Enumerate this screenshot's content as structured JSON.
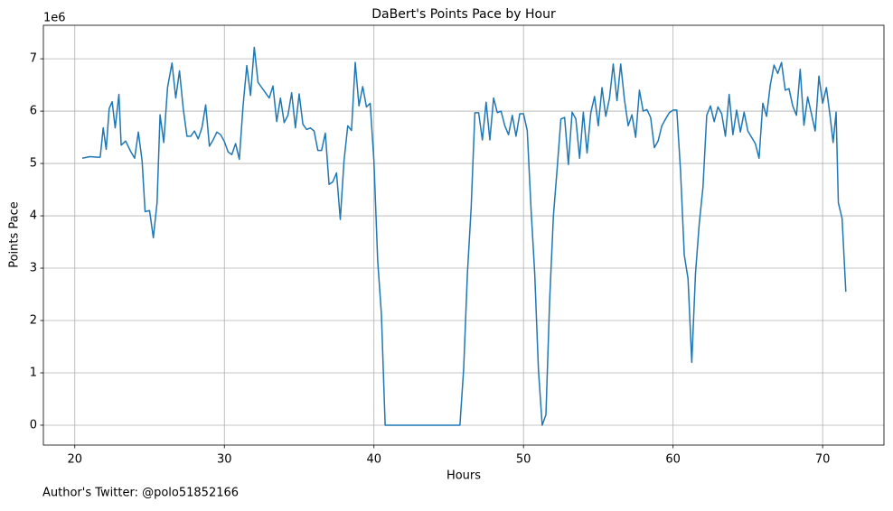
{
  "chart_data": {
    "type": "line",
    "title": "DaBert's Points Pace by Hour",
    "x_label": "Hours",
    "y_label": "Points Pace",
    "y_offset_label": "1e6",
    "footnote": "Author's Twitter: @polo51852166",
    "grid": true,
    "xlim": [
      17.9,
      74.1
    ],
    "ylim": [
      -0.38,
      7.64
    ],
    "xticks": [
      20,
      30,
      40,
      50,
      60,
      70
    ],
    "yticks": [
      0,
      1,
      2,
      3,
      4,
      5,
      6,
      7
    ],
    "x": [
      20.5,
      21.0,
      21.5,
      21.7,
      21.9,
      22.1,
      22.3,
      22.5,
      22.7,
      22.95,
      23.1,
      23.4,
      23.7,
      24.0,
      24.25,
      24.5,
      24.7,
      25.0,
      25.25,
      25.5,
      25.7,
      25.95,
      26.2,
      26.5,
      26.75,
      27.0,
      27.25,
      27.5,
      27.75,
      28.0,
      28.25,
      28.5,
      28.75,
      29.0,
      29.25,
      29.5,
      29.75,
      30.0,
      30.25,
      30.5,
      30.75,
      31.0,
      31.25,
      31.5,
      31.75,
      32.0,
      32.25,
      32.5,
      32.75,
      33.0,
      33.25,
      33.5,
      33.75,
      34.0,
      34.25,
      34.5,
      34.75,
      35.0,
      35.25,
      35.5,
      35.75,
      36.0,
      36.25,
      36.5,
      36.75,
      37.0,
      37.25,
      37.5,
      37.75,
      38.0,
      38.25,
      38.5,
      38.75,
      39.0,
      39.25,
      39.5,
      39.75,
      40.0,
      40.25,
      40.5,
      40.75,
      42.0,
      43.0,
      44.0,
      45.0,
      45.75,
      46.0,
      46.25,
      46.5,
      46.75,
      47.0,
      47.25,
      47.5,
      47.75,
      48.0,
      48.25,
      48.5,
      48.75,
      49.0,
      49.25,
      49.5,
      49.75,
      50.0,
      50.25,
      50.5,
      50.75,
      51.0,
      51.25,
      51.5,
      51.75,
      52.0,
      52.25,
      52.5,
      52.75,
      53.0,
      53.25,
      53.5,
      53.75,
      54.0,
      54.25,
      54.5,
      54.75,
      55.0,
      55.25,
      55.5,
      55.75,
      56.0,
      56.25,
      56.5,
      56.75,
      57.0,
      57.25,
      57.5,
      57.75,
      58.0,
      58.25,
      58.5,
      58.75,
      59.0,
      59.25,
      59.5,
      59.75,
      60.0,
      60.25,
      60.5,
      60.75,
      61.0,
      61.25,
      61.5,
      61.75,
      62.0,
      62.25,
      62.5,
      62.75,
      63.0,
      63.25,
      63.5,
      63.75,
      64.0,
      64.25,
      64.5,
      64.75,
      65.0,
      65.25,
      65.5,
      65.75,
      66.0,
      66.25,
      66.5,
      66.75,
      67.0,
      67.25,
      67.5,
      67.75,
      68.0,
      68.25,
      68.5,
      68.75,
      69.0,
      69.25,
      69.5,
      69.75,
      70.0,
      70.25,
      70.5,
      70.7,
      70.9,
      71.05,
      71.3,
      71.55
    ],
    "series": [
      {
        "name": "Points Pace",
        "color": "#1f77b4",
        "values": [
          5.1,
          5.13,
          5.12,
          5.12,
          5.68,
          5.27,
          6.05,
          6.18,
          5.68,
          6.32,
          5.35,
          5.43,
          5.25,
          5.1,
          5.6,
          5.05,
          4.08,
          4.1,
          3.58,
          4.25,
          5.93,
          5.4,
          6.45,
          6.92,
          6.25,
          6.77,
          6.05,
          5.52,
          5.52,
          5.62,
          5.47,
          5.68,
          6.12,
          5.33,
          5.45,
          5.6,
          5.55,
          5.42,
          5.22,
          5.17,
          5.38,
          5.08,
          6.1,
          6.87,
          6.3,
          7.22,
          6.55,
          6.45,
          6.35,
          6.25,
          6.48,
          5.8,
          6.25,
          5.78,
          5.92,
          6.35,
          5.68,
          6.33,
          5.75,
          5.65,
          5.68,
          5.62,
          5.25,
          5.25,
          5.58,
          4.6,
          4.65,
          4.82,
          3.93,
          5.05,
          5.72,
          5.63,
          6.93,
          6.1,
          6.47,
          6.08,
          6.15,
          5.05,
          3.15,
          2.12,
          0,
          0,
          0,
          0,
          0,
          0,
          1.08,
          2.9,
          4.15,
          5.97,
          5.97,
          5.45,
          6.17,
          5.45,
          6.25,
          5.97,
          6.0,
          5.72,
          5.55,
          5.92,
          5.52,
          5.95,
          5.95,
          5.63,
          4.15,
          2.9,
          1.05,
          0,
          0.2,
          2.4,
          4.0,
          4.9,
          5.85,
          5.88,
          4.98,
          5.98,
          5.85,
          5.1,
          5.98,
          5.2,
          5.97,
          6.28,
          5.72,
          6.45,
          5.9,
          6.25,
          6.9,
          6.2,
          6.9,
          6.22,
          5.72,
          5.93,
          5.5,
          6.4,
          6.0,
          6.03,
          5.88,
          5.3,
          5.43,
          5.72,
          5.85,
          5.97,
          6.02,
          6.02,
          4.85,
          3.25,
          2.8,
          1.2,
          2.9,
          3.85,
          4.55,
          5.92,
          6.1,
          5.8,
          6.08,
          5.95,
          5.52,
          6.32,
          5.55,
          6.02,
          5.6,
          5.98,
          5.62,
          5.5,
          5.38,
          5.1,
          6.15,
          5.9,
          6.5,
          6.88,
          6.72,
          6.93,
          6.4,
          6.43,
          6.1,
          5.92,
          6.8,
          5.73,
          6.27,
          5.95,
          5.62,
          6.67,
          6.15,
          6.45,
          5.9,
          5.4,
          5.98,
          4.25,
          3.95,
          2.55
        ]
      }
    ]
  }
}
